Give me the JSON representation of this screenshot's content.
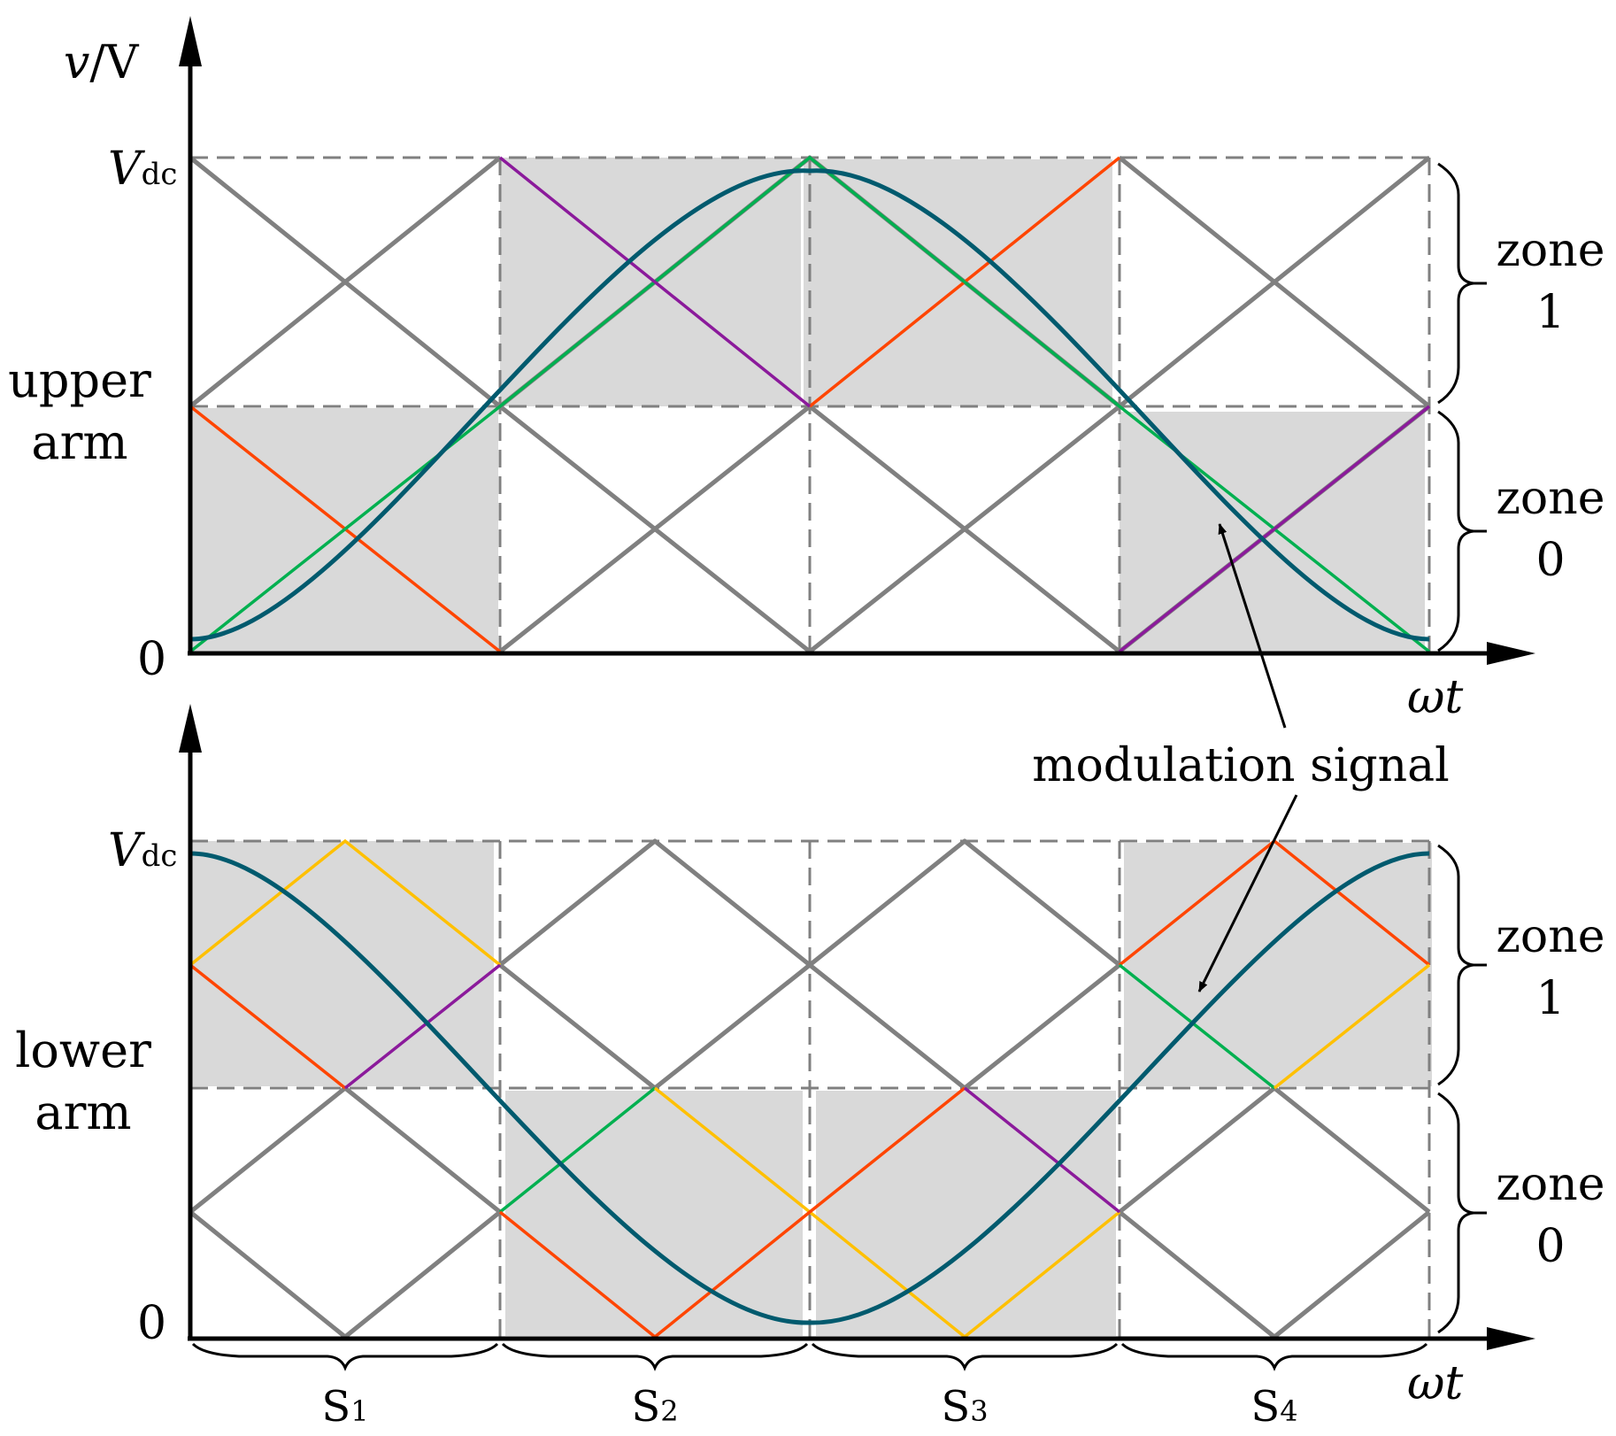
{
  "diagram": {
    "y_axis_label": {
      "var": "v",
      "unit": "/V"
    },
    "x_axis_label": "ωt",
    "vdc_label": {
      "main": "V",
      "sub": "dc"
    },
    "zero_label": "0",
    "upper_arm_label": [
      "upper",
      "arm"
    ],
    "lower_arm_label": [
      "lower",
      "arm"
    ],
    "annotation": "modulation signal",
    "zones": [
      {
        "word": "zone",
        "num": "1"
      },
      {
        "word": "zone",
        "num": "0"
      }
    ],
    "segments": [
      {
        "main": "S",
        "sub": "1"
      },
      {
        "main": "S",
        "sub": "2"
      },
      {
        "main": "S",
        "sub": "3"
      },
      {
        "main": "S",
        "sub": "4"
      }
    ],
    "carrier_colors": {
      "gray": "#808080",
      "red": "#ff4500",
      "green": "#00b050",
      "purple": "#8b1a9b",
      "yellow": "#ffc000",
      "teal": "#005a6e",
      "shade": "#d9d9d9"
    }
  }
}
